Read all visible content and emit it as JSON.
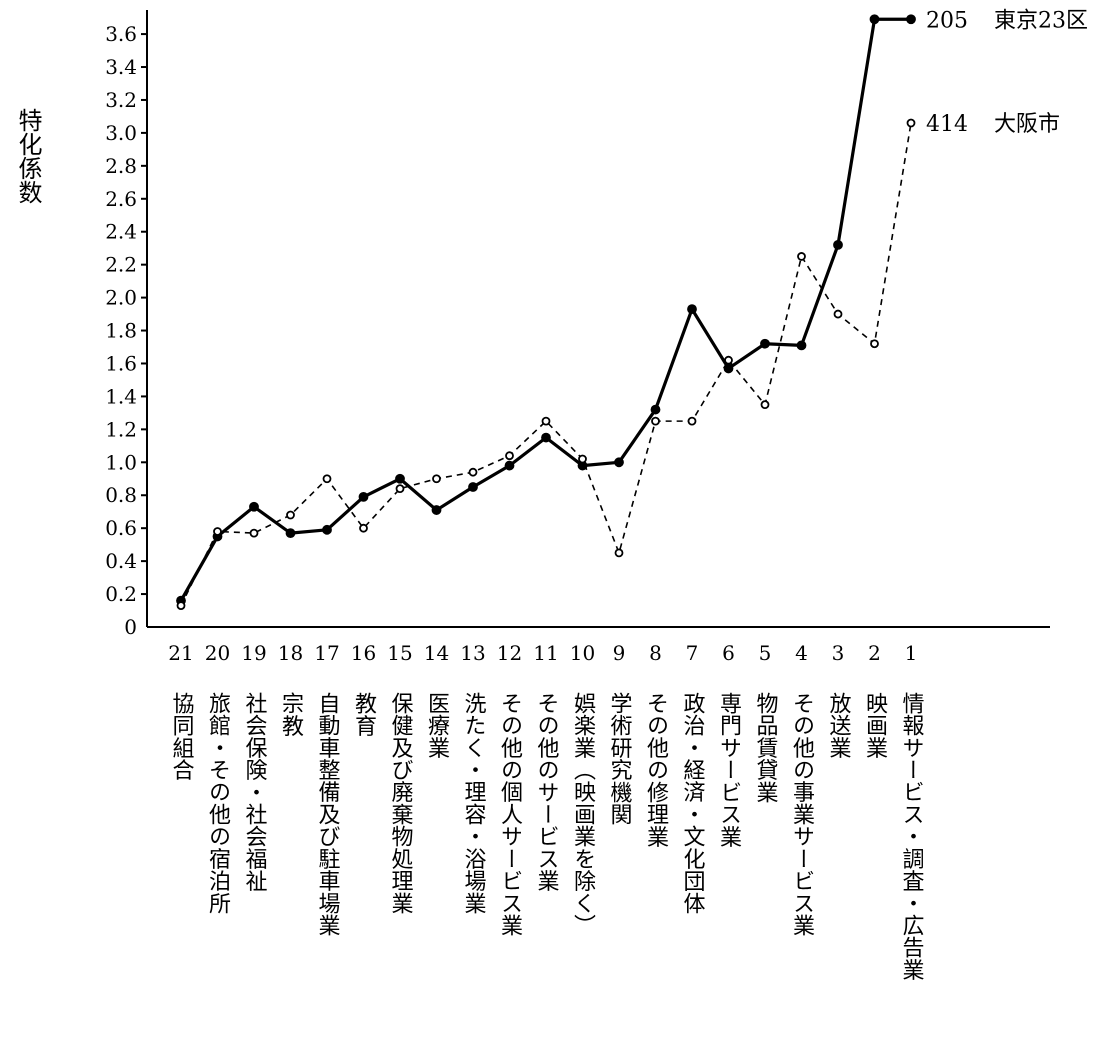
{
  "chart_data": {
    "type": "line",
    "ylabel": "特化係数",
    "yticks": [
      "0",
      "0.2",
      "0.4",
      "0.6",
      "0.8",
      "1.0",
      "1.2",
      "1.4",
      "1.6",
      "1.8",
      "2.0",
      "2.2",
      "2.4",
      "2.6",
      "2.8",
      "3.0",
      "3.2",
      "3.4",
      "3.6"
    ],
    "ylim": [
      0,
      3.7
    ],
    "categories": [
      "21",
      "20",
      "19",
      "18",
      "17",
      "16",
      "15",
      "14",
      "13",
      "12",
      "11",
      "10",
      "9",
      "8",
      "7",
      "6",
      "5",
      "4",
      "3",
      "2",
      "1"
    ],
    "category_names": [
      "協同組合",
      "旅館・その他の宿泊所",
      "社会保険・社会福祉",
      "宗教",
      "自動車整備及び駐車場業",
      "教育",
      "保健及び廃棄物処理業",
      "医療業",
      "洗たく・理容・浴場業",
      "その他の個人サービス業",
      "その他のサービス業",
      "娯楽業（映画業を除く）",
      "学術研究機関",
      "その他の修理業",
      "政治・経済・文化団体",
      "専門サービス業",
      "物品賃貸業",
      "その他の事業サービス業",
      "放送業",
      "映画業",
      "情報サービス・調査・広告業"
    ],
    "series": [
      {
        "name": "東京23区",
        "end_value_label": "205",
        "style": "solid",
        "marker": "filled",
        "values": [
          0.16,
          0.55,
          0.73,
          0.57,
          0.59,
          0.79,
          0.9,
          0.71,
          0.85,
          0.98,
          1.15,
          0.98,
          1.0,
          1.32,
          1.93,
          1.57,
          1.72,
          1.71,
          2.32,
          3.69,
          3.69
        ]
      },
      {
        "name": "大阪市",
        "end_value_label": "414",
        "style": "dashed",
        "marker": "open",
        "values": [
          0.13,
          0.58,
          0.57,
          0.68,
          0.9,
          0.6,
          0.84,
          0.9,
          0.94,
          1.04,
          1.25,
          1.02,
          0.45,
          1.25,
          1.25,
          1.62,
          1.35,
          2.25,
          1.9,
          1.72,
          3.06
        ]
      }
    ],
    "grid": false,
    "legend": "none"
  }
}
